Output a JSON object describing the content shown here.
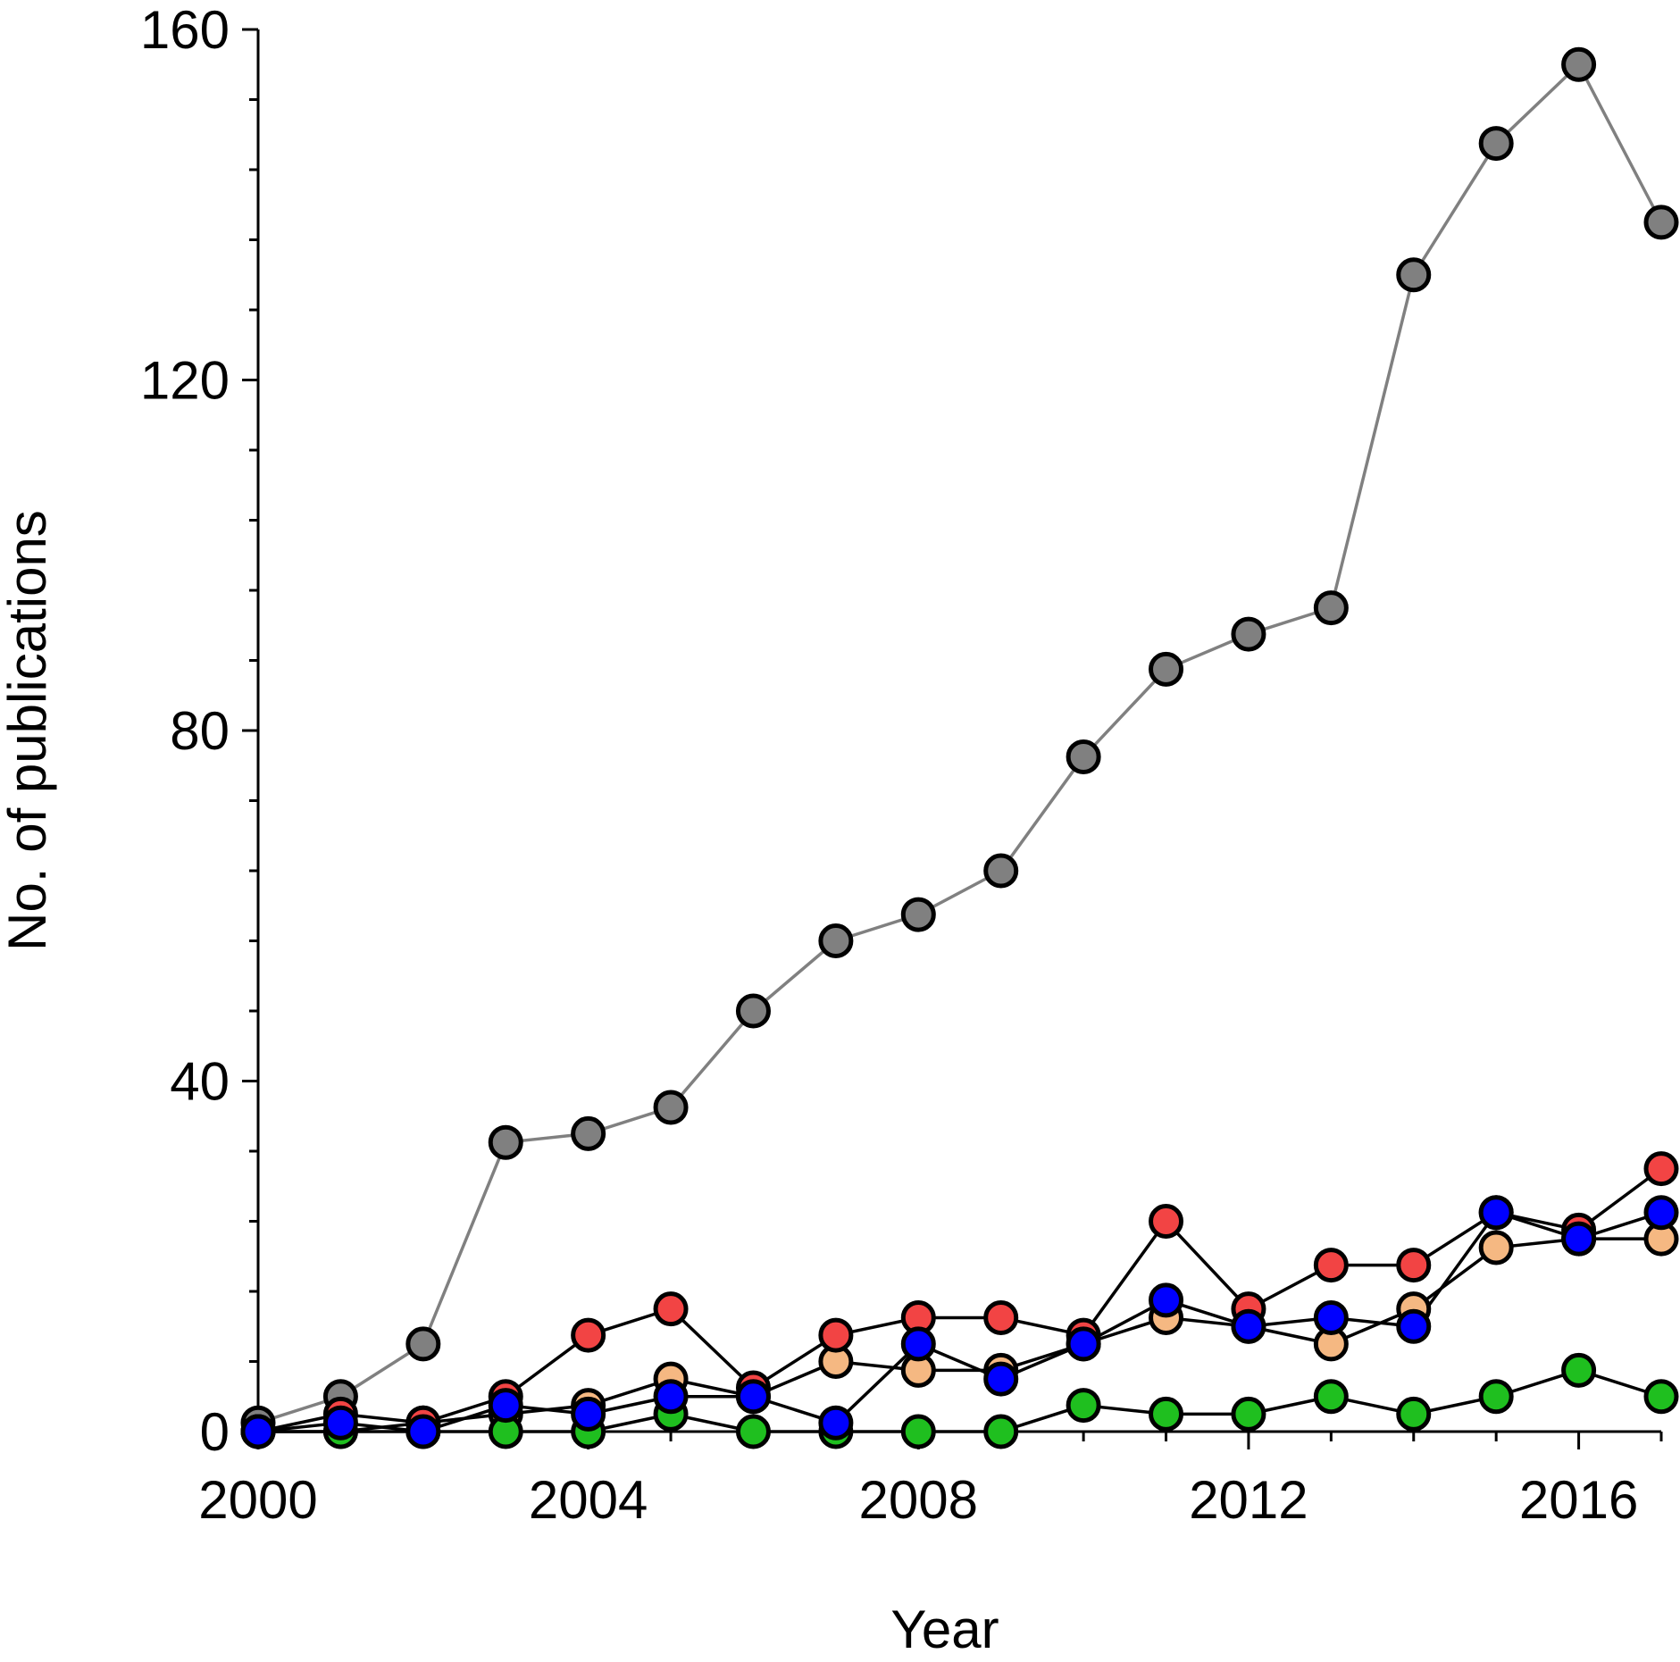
{
  "chart_data": {
    "type": "line",
    "title": "",
    "xlabel": "Year",
    "ylabel": "No. of publications",
    "xlim": [
      2000,
      2017
    ],
    "ylim": [
      0,
      160
    ],
    "x_major_ticks": [
      2000,
      2004,
      2008,
      2012,
      2016
    ],
    "x_minor_step": 1,
    "y_major_ticks": [
      0,
      40,
      80,
      120,
      160
    ],
    "y_minor_step": 8,
    "grid": false,
    "legend": "none",
    "x": [
      2000,
      2001,
      2002,
      2003,
      2004,
      2005,
      2006,
      2007,
      2008,
      2009,
      2010,
      2011,
      2012,
      2013,
      2014,
      2015,
      2016,
      2017
    ],
    "series": [
      {
        "color": "#808080",
        "line_color": "#808080",
        "values": [
          1,
          4,
          10,
          33,
          34,
          37,
          48,
          56,
          59,
          64,
          77,
          87,
          91,
          94,
          132,
          147,
          156,
          138
        ]
      },
      {
        "color": "#f5b882",
        "line_color": "#000000",
        "values": [
          0,
          0,
          1,
          2,
          3,
          6,
          4,
          8,
          7,
          7,
          10,
          13,
          12,
          10,
          14,
          21,
          22,
          22
        ]
      },
      {
        "color": "#1fbf1f",
        "line_color": "#000000",
        "values": [
          0,
          0,
          0,
          0,
          0,
          2,
          0,
          0,
          0,
          0,
          3,
          2,
          2,
          4,
          2,
          4,
          7,
          4
        ]
      },
      {
        "color": "#f24444",
        "line_color": "#000000",
        "values": [
          0,
          2,
          1,
          4,
          11,
          14,
          5,
          11,
          13,
          13,
          11,
          24,
          14,
          19,
          19,
          25,
          23,
          30
        ]
      },
      {
        "color": "#0000ff",
        "line_color": "#000000",
        "values": [
          0,
          1,
          0,
          3,
          2,
          4,
          4,
          1,
          10,
          6,
          10,
          15,
          12,
          13,
          12,
          25,
          22,
          25
        ]
      }
    ]
  }
}
